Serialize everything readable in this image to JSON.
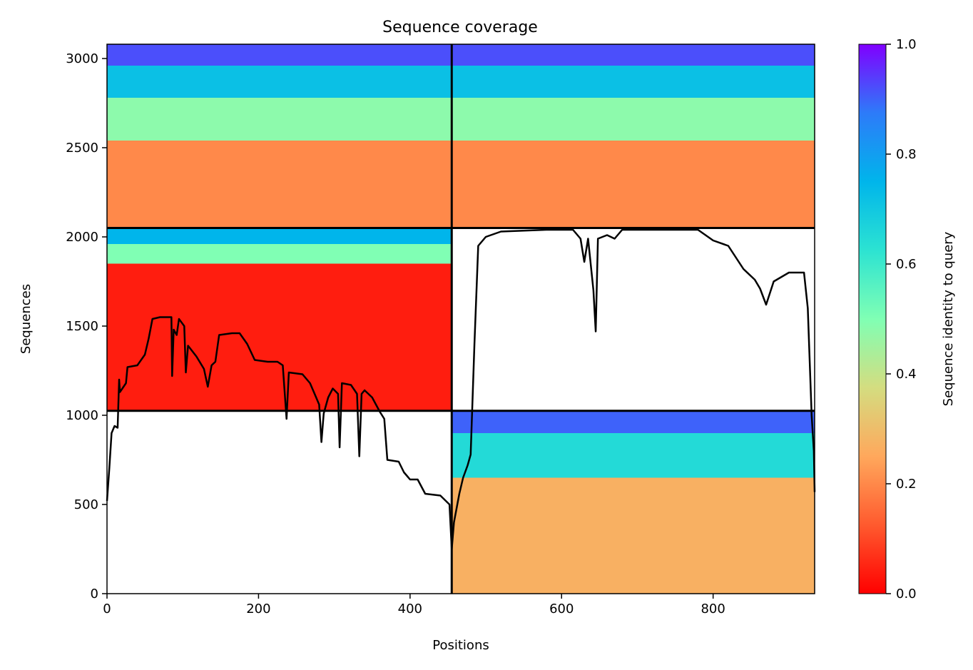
{
  "chart_data": {
    "type": "heatmap",
    "title": "Sequence coverage",
    "xlabel": "Positions",
    "ylabel": "Sequences",
    "xlim": [
      0,
      934
    ],
    "ylim": [
      0,
      3080
    ],
    "x_ticks": [
      0,
      200,
      400,
      600,
      800
    ],
    "y_ticks": [
      0,
      500,
      1000,
      1500,
      2000,
      2500,
      3000
    ],
    "colormap": "rainbow_r",
    "colorbar": {
      "label": "Sequence identity to query",
      "range": [
        0,
        1
      ],
      "ticks": [
        "0.0",
        "0.2",
        "0.4",
        "0.6",
        "0.8",
        "1.0"
      ]
    },
    "block_boundaries": {
      "x": 455,
      "y": [
        1025,
        2050
      ]
    },
    "blocks": [
      {
        "name": "top-left",
        "x_range": [
          0,
          455
        ],
        "y_range": [
          2050,
          3080
        ],
        "identity_bands": [
          {
            "y": [
              2050,
              2540
            ],
            "identity": 0.2
          },
          {
            "y": [
              2540,
              2780
            ],
            "identity": 0.48
          },
          {
            "y": [
              2780,
              2960
            ],
            "identity": 0.72
          },
          {
            "y": [
              2960,
              3080
            ],
            "identity": 0.92
          }
        ]
      },
      {
        "name": "top-right",
        "x_range": [
          455,
          934
        ],
        "y_range": [
          2050,
          3080
        ],
        "identity_bands": [
          {
            "y": [
              2050,
              2540
            ],
            "identity": 0.2
          },
          {
            "y": [
              2540,
              2780
            ],
            "identity": 0.48
          },
          {
            "y": [
              2780,
              2960
            ],
            "identity": 0.72
          },
          {
            "y": [
              2960,
              3080
            ],
            "identity": 0.92
          }
        ]
      },
      {
        "name": "middle-left",
        "x_range": [
          0,
          455
        ],
        "y_range": [
          1025,
          2050
        ],
        "identity_bands": [
          {
            "y": [
              1025,
              1850
            ],
            "identity": 0.04
          },
          {
            "y": [
              1850,
              1960
            ],
            "identity": 0.5
          },
          {
            "y": [
              1960,
              2050
            ],
            "identity": 0.75
          }
        ]
      },
      {
        "name": "bottom-right",
        "x_range": [
          455,
          934
        ],
        "y_range": [
          0,
          1025
        ],
        "identity_bands": [
          {
            "y": [
              0,
              650
            ],
            "identity": 0.27
          },
          {
            "y": [
              650,
              900
            ],
            "identity": 0.65
          },
          {
            "y": [
              900,
              1025
            ],
            "identity": 0.9
          }
        ]
      }
    ],
    "coverage_line": {
      "name": "coverage",
      "color": "#000000",
      "points": [
        [
          0,
          520
        ],
        [
          3,
          700
        ],
        [
          6,
          900
        ],
        [
          10,
          940
        ],
        [
          14,
          930
        ],
        [
          16,
          1200
        ],
        [
          17,
          1130
        ],
        [
          25,
          1180
        ],
        [
          27,
          1270
        ],
        [
          40,
          1280
        ],
        [
          50,
          1340
        ],
        [
          55,
          1430
        ],
        [
          60,
          1540
        ],
        [
          70,
          1550
        ],
        [
          85,
          1550
        ],
        [
          86,
          1220
        ],
        [
          88,
          1480
        ],
        [
          92,
          1450
        ],
        [
          95,
          1540
        ],
        [
          102,
          1500
        ],
        [
          104,
          1240
        ],
        [
          107,
          1390
        ],
        [
          118,
          1330
        ],
        [
          128,
          1260
        ],
        [
          133,
          1160
        ],
        [
          138,
          1280
        ],
        [
          143,
          1300
        ],
        [
          148,
          1450
        ],
        [
          165,
          1460
        ],
        [
          175,
          1460
        ],
        [
          185,
          1400
        ],
        [
          195,
          1310
        ],
        [
          212,
          1300
        ],
        [
          225,
          1300
        ],
        [
          232,
          1280
        ],
        [
          237,
          980
        ],
        [
          240,
          1240
        ],
        [
          258,
          1230
        ],
        [
          268,
          1180
        ],
        [
          275,
          1110
        ],
        [
          280,
          1060
        ],
        [
          283,
          850
        ],
        [
          286,
          1010
        ],
        [
          292,
          1100
        ],
        [
          298,
          1150
        ],
        [
          305,
          1120
        ],
        [
          307,
          820
        ],
        [
          310,
          1180
        ],
        [
          322,
          1170
        ],
        [
          330,
          1120
        ],
        [
          333,
          770
        ],
        [
          336,
          1120
        ],
        [
          340,
          1140
        ],
        [
          350,
          1100
        ],
        [
          360,
          1020
        ],
        [
          366,
          980
        ],
        [
          370,
          750
        ],
        [
          385,
          740
        ],
        [
          392,
          680
        ],
        [
          396,
          660
        ],
        [
          400,
          640
        ],
        [
          410,
          640
        ],
        [
          420,
          560
        ],
        [
          440,
          550
        ],
        [
          452,
          500
        ],
        [
          455,
          250
        ],
        [
          458,
          400
        ],
        [
          465,
          560
        ],
        [
          470,
          650
        ],
        [
          476,
          720
        ],
        [
          480,
          780
        ],
        [
          485,
          1400
        ],
        [
          490,
          1950
        ],
        [
          500,
          2000
        ],
        [
          520,
          2030
        ],
        [
          580,
          2040
        ],
        [
          615,
          2040
        ],
        [
          625,
          1990
        ],
        [
          630,
          1860
        ],
        [
          635,
          1990
        ],
        [
          642,
          1700
        ],
        [
          645,
          1470
        ],
        [
          648,
          1990
        ],
        [
          660,
          2010
        ],
        [
          670,
          1990
        ],
        [
          680,
          2040
        ],
        [
          720,
          2040
        ],
        [
          780,
          2040
        ],
        [
          800,
          1980
        ],
        [
          820,
          1950
        ],
        [
          840,
          1820
        ],
        [
          855,
          1760
        ],
        [
          862,
          1710
        ],
        [
          870,
          1620
        ],
        [
          880,
          1750
        ],
        [
          900,
          1800
        ],
        [
          920,
          1800
        ],
        [
          925,
          1600
        ],
        [
          930,
          1000
        ],
        [
          933,
          800
        ],
        [
          934,
          570
        ]
      ]
    }
  }
}
